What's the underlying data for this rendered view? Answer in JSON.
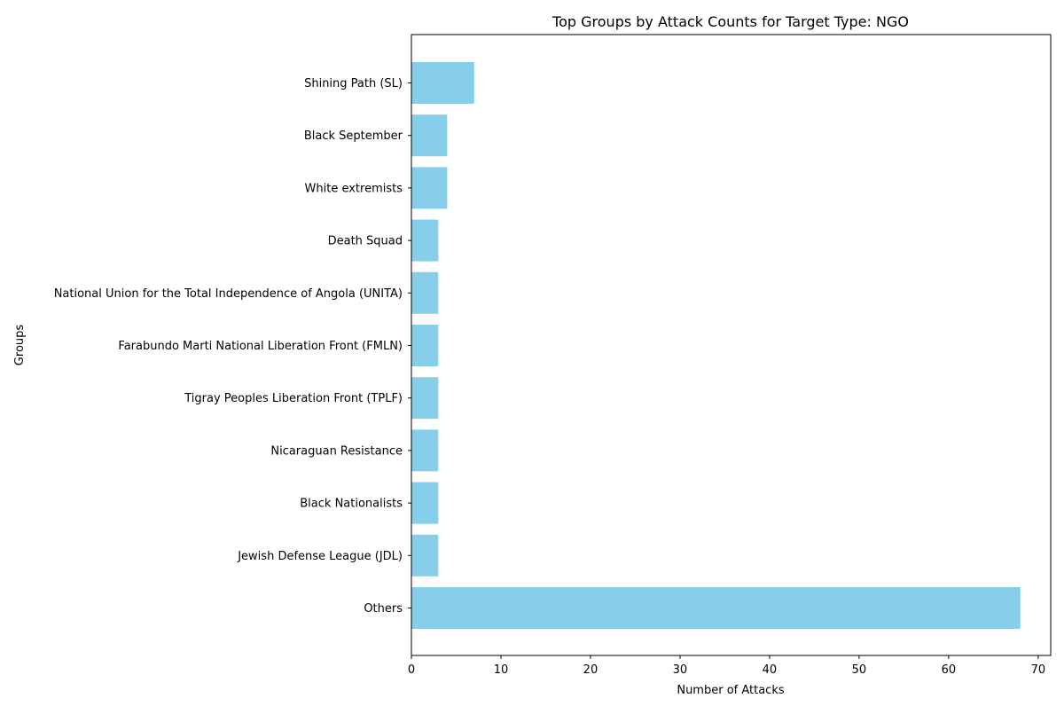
{
  "chart_data": {
    "type": "bar",
    "orientation": "horizontal",
    "title": "Top Groups by Attack Counts for Target Type: NGO",
    "xlabel": "Number of Attacks",
    "ylabel": "Groups",
    "xlim": [
      0,
      71.4
    ],
    "xticks": [
      0,
      10,
      20,
      30,
      40,
      50,
      60,
      70
    ],
    "grid": false,
    "bar_color": "#87CEEB",
    "categories": [
      "Shining Path (SL)",
      "Black September",
      "White extremists",
      "Death Squad",
      "National Union for the Total Independence of Angola (UNITA)",
      "Farabundo Marti National Liberation Front (FMLN)",
      "Tigray Peoples Liberation Front (TPLF)",
      "Nicaraguan Resistance",
      "Black Nationalists",
      "Jewish Defense League (JDL)",
      "Others"
    ],
    "values": [
      7,
      4,
      4,
      3,
      3,
      3,
      3,
      3,
      3,
      3,
      68
    ]
  }
}
